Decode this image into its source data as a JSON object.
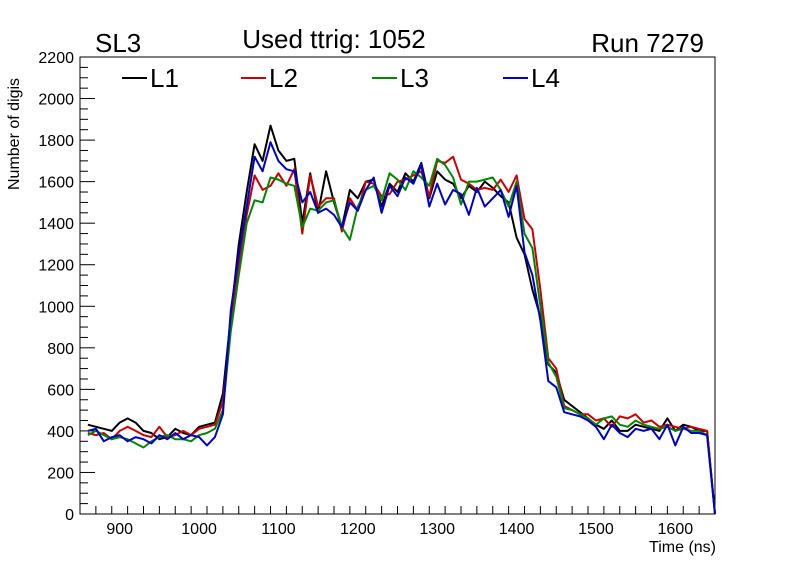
{
  "header": {
    "left_label": "SL3",
    "center_label": "Used ttrig: 1052",
    "right_label": "Run 7279"
  },
  "chart_data": {
    "type": "line",
    "xlabel": "Time (ns)",
    "ylabel": "Number of digis",
    "xlim": [
      850,
      1650
    ],
    "ylim": [
      0,
      2200
    ],
    "x_ticks": [
      900,
      1000,
      1100,
      1200,
      1300,
      1400,
      1500,
      1600
    ],
    "y_ticks": [
      0,
      200,
      400,
      600,
      800,
      1000,
      1200,
      1400,
      1600,
      1800,
      2000,
      2200
    ],
    "grid": false,
    "legend_position": "top-left, horizontal",
    "x": [
      860,
      870,
      880,
      890,
      900,
      910,
      920,
      930,
      940,
      950,
      960,
      970,
      980,
      990,
      1000,
      1010,
      1020,
      1030,
      1040,
      1050,
      1060,
      1070,
      1080,
      1090,
      1100,
      1110,
      1120,
      1130,
      1140,
      1150,
      1160,
      1170,
      1180,
      1190,
      1200,
      1210,
      1220,
      1230,
      1240,
      1250,
      1260,
      1270,
      1280,
      1290,
      1300,
      1310,
      1320,
      1330,
      1340,
      1350,
      1360,
      1370,
      1380,
      1390,
      1400,
      1410,
      1420,
      1430,
      1440,
      1450,
      1460,
      1470,
      1480,
      1490,
      1500,
      1510,
      1520,
      1530,
      1540,
      1550,
      1560,
      1570,
      1580,
      1590,
      1600,
      1610,
      1620,
      1630,
      1640,
      1650
    ],
    "series": [
      {
        "name": "L1",
        "color": "#000000",
        "values": [
          430,
          420,
          410,
          400,
          440,
          460,
          440,
          400,
          390,
          360,
          370,
          410,
          390,
          380,
          420,
          430,
          440,
          580,
          950,
          1300,
          1550,
          1780,
          1700,
          1870,
          1750,
          1700,
          1710,
          1400,
          1640,
          1450,
          1650,
          1500,
          1380,
          1560,
          1520,
          1600,
          1610,
          1480,
          1590,
          1550,
          1640,
          1600,
          1690,
          1520,
          1650,
          1610,
          1590,
          1520,
          1580,
          1550,
          1600,
          1570,
          1530,
          1500,
          1330,
          1250,
          1080,
          950,
          720,
          680,
          550,
          520,
          490,
          460,
          430,
          410,
          450,
          400,
          400,
          430,
          420,
          410,
          400,
          460,
          400,
          430,
          420,
          400,
          400,
          0
        ]
      },
      {
        "name": "L2",
        "color": "#cc0000",
        "values": [
          390,
          380,
          390,
          360,
          400,
          420,
          400,
          380,
          370,
          420,
          370,
          380,
          400,
          380,
          410,
          420,
          430,
          540,
          900,
          1200,
          1440,
          1630,
          1560,
          1580,
          1640,
          1580,
          1660,
          1350,
          1630,
          1480,
          1520,
          1520,
          1360,
          1520,
          1460,
          1600,
          1590,
          1530,
          1540,
          1600,
          1610,
          1630,
          1650,
          1530,
          1700,
          1690,
          1720,
          1610,
          1590,
          1560,
          1570,
          1560,
          1610,
          1550,
          1630,
          1420,
          1370,
          1080,
          750,
          700,
          520,
          500,
          480,
          480,
          450,
          460,
          420,
          470,
          460,
          480,
          440,
          450,
          420,
          430,
          420,
          410,
          420,
          410,
          400,
          0
        ]
      },
      {
        "name": "L3",
        "color": "#008800",
        "values": [
          380,
          400,
          380,
          360,
          370,
          360,
          340,
          320,
          350,
          370,
          380,
          360,
          360,
          350,
          380,
          390,
          410,
          500,
          880,
          1150,
          1400,
          1510,
          1500,
          1620,
          1610,
          1590,
          1580,
          1380,
          1470,
          1460,
          1500,
          1510,
          1380,
          1320,
          1480,
          1560,
          1580,
          1510,
          1640,
          1610,
          1560,
          1650,
          1620,
          1580,
          1710,
          1680,
          1620,
          1490,
          1600,
          1600,
          1610,
          1620,
          1560,
          1480,
          1600,
          1350,
          1280,
          1000,
          730,
          660,
          510,
          500,
          480,
          460,
          430,
          460,
          470,
          430,
          420,
          450,
          430,
          420,
          410,
          420,
          400,
          410,
          400,
          400,
          380,
          0
        ]
      },
      {
        "name": "L4",
        "color": "#0000cc",
        "values": [
          400,
          410,
          350,
          370,
          380,
          350,
          370,
          360,
          340,
          380,
          360,
          390,
          360,
          380,
          370,
          330,
          370,
          480,
          980,
          1250,
          1480,
          1720,
          1650,
          1790,
          1700,
          1660,
          1650,
          1500,
          1550,
          1450,
          1470,
          1440,
          1380,
          1500,
          1460,
          1560,
          1620,
          1450,
          1580,
          1530,
          1620,
          1590,
          1680,
          1480,
          1590,
          1490,
          1560,
          1540,
          1440,
          1570,
          1480,
          1520,
          1560,
          1430,
          1580,
          1260,
          1150,
          930,
          640,
          610,
          490,
          480,
          470,
          450,
          420,
          360,
          430,
          390,
          370,
          410,
          400,
          410,
          360,
          430,
          330,
          420,
          390,
          390,
          380,
          0
        ]
      }
    ]
  }
}
